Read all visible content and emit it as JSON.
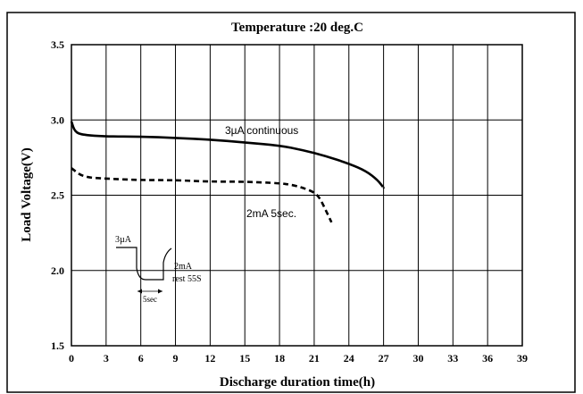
{
  "chart_data": {
    "type": "line",
    "title": "Temperature :20 deg.C",
    "xlabel": "Discharge duration time(h)",
    "ylabel": "Load  Voltage(V)",
    "xlim": [
      0,
      39
    ],
    "ylim": [
      1.5,
      3.5
    ],
    "x_ticks": [
      0,
      3,
      6,
      9,
      12,
      15,
      18,
      21,
      24,
      27,
      30,
      33,
      36,
      39
    ],
    "y_ticks": [
      1.5,
      2.0,
      2.5,
      3.0,
      3.5
    ],
    "grid": true,
    "series": [
      {
        "name": "3µA continuous",
        "style": "solid",
        "x": [
          0,
          0.3,
          1,
          3,
          6,
          9,
          12,
          15,
          18,
          20,
          22,
          24,
          25.5,
          26.5,
          27
        ],
        "y": [
          2.99,
          2.92,
          2.9,
          2.89,
          2.89,
          2.88,
          2.87,
          2.85,
          2.83,
          2.8,
          2.76,
          2.71,
          2.66,
          2.6,
          2.55
        ]
      },
      {
        "name": "2mA  5sec.",
        "style": "dashed",
        "x": [
          0,
          1,
          3,
          6,
          9,
          12,
          15,
          18,
          19,
          20,
          21,
          21.5,
          22,
          22.5
        ],
        "y": [
          2.68,
          2.62,
          2.61,
          2.6,
          2.6,
          2.59,
          2.59,
          2.58,
          2.57,
          2.55,
          2.52,
          2.48,
          2.4,
          2.32
        ]
      }
    ],
    "inset": {
      "label_high": "3µA",
      "label_low": "2mA",
      "label_rest": "rest 55S",
      "label_pulse": "5sec"
    }
  }
}
